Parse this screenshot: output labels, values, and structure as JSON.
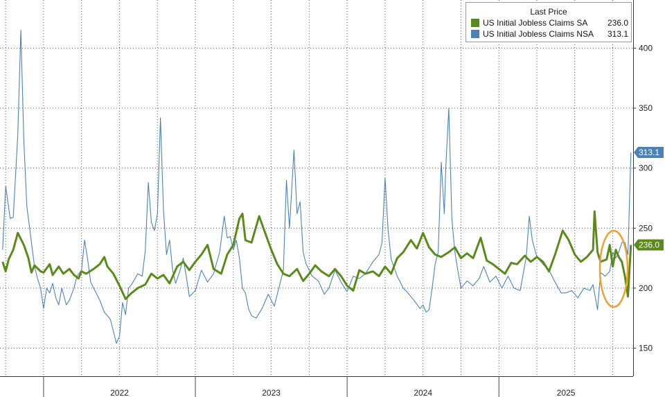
{
  "chart_data": {
    "type": "line",
    "legend": {
      "title": "Last Price",
      "position": "top-right"
    },
    "x": {
      "ticks": [
        "2022",
        "2023",
        "2024",
        "2025"
      ],
      "range": [
        "2021-09",
        "2025-12"
      ]
    },
    "y": {
      "ticks": [
        "150",
        "200",
        "250",
        "300",
        "350",
        "400"
      ],
      "range": [
        122,
        435
      ]
    },
    "grid": true,
    "series": [
      {
        "name": "US Initial Jobless Claims SA",
        "last": "236.0",
        "color": "#5a8a1a",
        "points": [
          [
            2021.73,
            222
          ],
          [
            2021.75,
            214
          ],
          [
            2021.77,
            224
          ],
          [
            2021.8,
            232
          ],
          [
            2021.83,
            246
          ],
          [
            2021.87,
            236
          ],
          [
            2021.9,
            225
          ],
          [
            2021.92,
            213
          ],
          [
            2021.94,
            219
          ],
          [
            2021.98,
            214
          ],
          [
            2022.0,
            213
          ],
          [
            2022.04,
            220
          ],
          [
            2022.06,
            211
          ],
          [
            2022.1,
            218
          ],
          [
            2022.13,
            212
          ],
          [
            2022.17,
            216
          ],
          [
            2022.2,
            211
          ],
          [
            2022.23,
            208
          ],
          [
            2022.25,
            214
          ],
          [
            2022.28,
            212
          ],
          [
            2022.33,
            216
          ],
          [
            2022.37,
            220
          ],
          [
            2022.4,
            226
          ],
          [
            2022.42,
            218
          ],
          [
            2022.46,
            212
          ],
          [
            2022.5,
            202
          ],
          [
            2022.54,
            191
          ],
          [
            2022.58,
            196
          ],
          [
            2022.62,
            200
          ],
          [
            2022.67,
            203
          ],
          [
            2022.71,
            212
          ],
          [
            2022.75,
            208
          ],
          [
            2022.79,
            211
          ],
          [
            2022.83,
            204
          ],
          [
            2022.88,
            218
          ],
          [
            2022.92,
            222
          ],
          [
            2022.96,
            215
          ],
          [
            2023.0,
            222
          ],
          [
            2023.04,
            228
          ],
          [
            2023.08,
            236
          ],
          [
            2023.12,
            216
          ],
          [
            2023.17,
            212
          ],
          [
            2023.21,
            228
          ],
          [
            2023.25,
            236
          ],
          [
            2023.29,
            258
          ],
          [
            2023.31,
            262
          ],
          [
            2023.33,
            240
          ],
          [
            2023.37,
            238
          ],
          [
            2023.42,
            260
          ],
          [
            2023.46,
            246
          ],
          [
            2023.5,
            232
          ],
          [
            2023.54,
            220
          ],
          [
            2023.58,
            212
          ],
          [
            2023.62,
            210
          ],
          [
            2023.67,
            216
          ],
          [
            2023.71,
            206
          ],
          [
            2023.75,
            212
          ],
          [
            2023.79,
            219
          ],
          [
            2023.83,
            214
          ],
          [
            2023.88,
            210
          ],
          [
            2023.92,
            216
          ],
          [
            2023.96,
            210
          ],
          [
            2024.0,
            202
          ],
          [
            2024.04,
            198
          ],
          [
            2024.08,
            215
          ],
          [
            2024.12,
            212
          ],
          [
            2024.17,
            214
          ],
          [
            2024.21,
            210
          ],
          [
            2024.25,
            218
          ],
          [
            2024.29,
            212
          ],
          [
            2024.33,
            225
          ],
          [
            2024.37,
            230
          ],
          [
            2024.42,
            240
          ],
          [
            2024.46,
            233
          ],
          [
            2024.5,
            246
          ],
          [
            2024.54,
            234
          ],
          [
            2024.58,
            228
          ],
          [
            2024.62,
            226
          ],
          [
            2024.67,
            230
          ],
          [
            2024.71,
            234
          ],
          [
            2024.75,
            225
          ],
          [
            2024.79,
            229
          ],
          [
            2024.83,
            225
          ],
          [
            2024.88,
            242
          ],
          [
            2024.92,
            223
          ],
          [
            2024.96,
            220
          ],
          [
            2025.0,
            216
          ],
          [
            2025.04,
            212
          ],
          [
            2025.08,
            221
          ],
          [
            2025.12,
            220
          ],
          [
            2025.17,
            227
          ],
          [
            2025.21,
            222
          ],
          [
            2025.25,
            226
          ],
          [
            2025.29,
            222
          ],
          [
            2025.33,
            214
          ],
          [
            2025.37,
            228
          ],
          [
            2025.42,
            248
          ],
          [
            2025.46,
            240
          ],
          [
            2025.5,
            228
          ],
          [
            2025.54,
            222
          ],
          [
            2025.58,
            226
          ],
          [
            2025.62,
            232
          ],
          [
            2025.63,
            264
          ],
          [
            2025.65,
            230
          ],
          [
            2025.67,
            222
          ],
          [
            2025.71,
            224
          ],
          [
            2025.73,
            236
          ],
          [
            2025.75,
            218
          ],
          [
            2025.77,
            232
          ],
          [
            2025.79,
            226
          ],
          [
            2025.81,
            222
          ],
          [
            2025.83,
            210
          ],
          [
            2025.85,
            193
          ],
          [
            2025.87,
            236
          ]
        ]
      },
      {
        "name": "US Initial Jobless Claims NSA",
        "last": "313.1",
        "color": "#4a82b8",
        "points": [
          [
            2021.73,
            232
          ],
          [
            2021.75,
            285
          ],
          [
            2021.78,
            258
          ],
          [
            2021.8,
            259
          ],
          [
            2021.83,
            328
          ],
          [
            2021.85,
            415
          ],
          [
            2021.87,
            323
          ],
          [
            2021.89,
            268
          ],
          [
            2021.92,
            238
          ],
          [
            2021.94,
            218
          ],
          [
            2021.96,
            208
          ],
          [
            2021.98,
            200
          ],
          [
            2022.0,
            183
          ],
          [
            2022.02,
            200
          ],
          [
            2022.04,
            196
          ],
          [
            2022.06,
            204
          ],
          [
            2022.08,
            192
          ],
          [
            2022.1,
            186
          ],
          [
            2022.12,
            200
          ],
          [
            2022.15,
            186
          ],
          [
            2022.17,
            190
          ],
          [
            2022.2,
            200
          ],
          [
            2022.22,
            210
          ],
          [
            2022.25,
            215
          ],
          [
            2022.27,
            240
          ],
          [
            2022.29,
            224
          ],
          [
            2022.31,
            205
          ],
          [
            2022.33,
            200
          ],
          [
            2022.37,
            190
          ],
          [
            2022.4,
            180
          ],
          [
            2022.44,
            174
          ],
          [
            2022.48,
            154
          ],
          [
            2022.5,
            160
          ],
          [
            2022.52,
            188
          ],
          [
            2022.54,
            178
          ],
          [
            2022.56,
            200
          ],
          [
            2022.58,
            203
          ],
          [
            2022.62,
            212
          ],
          [
            2022.65,
            210
          ],
          [
            2022.67,
            231
          ],
          [
            2022.69,
            288
          ],
          [
            2022.71,
            255
          ],
          [
            2022.73,
            248
          ],
          [
            2022.75,
            262
          ],
          [
            2022.77,
            342
          ],
          [
            2022.79,
            265
          ],
          [
            2022.81,
            228
          ],
          [
            2022.83,
            240
          ],
          [
            2022.85,
            215
          ],
          [
            2022.87,
            204
          ],
          [
            2022.9,
            215
          ],
          [
            2022.92,
            225
          ],
          [
            2022.94,
            210
          ],
          [
            2022.96,
            193
          ],
          [
            2023.0,
            198
          ],
          [
            2023.04,
            215
          ],
          [
            2023.08,
            205
          ],
          [
            2023.12,
            212
          ],
          [
            2023.16,
            230
          ],
          [
            2023.19,
            260
          ],
          [
            2023.21,
            242
          ],
          [
            2023.23,
            243
          ],
          [
            2023.25,
            232
          ],
          [
            2023.27,
            240
          ],
          [
            2023.29,
            225
          ],
          [
            2023.31,
            200
          ],
          [
            2023.33,
            196
          ],
          [
            2023.35,
            183
          ],
          [
            2023.37,
            177
          ],
          [
            2023.4,
            175
          ],
          [
            2023.44,
            183
          ],
          [
            2023.48,
            195
          ],
          [
            2023.52,
            185
          ],
          [
            2023.54,
            195
          ],
          [
            2023.56,
            205
          ],
          [
            2023.58,
            215
          ],
          [
            2023.6,
            290
          ],
          [
            2023.62,
            250
          ],
          [
            2023.65,
            315
          ],
          [
            2023.67,
            262
          ],
          [
            2023.69,
            272
          ],
          [
            2023.71,
            230
          ],
          [
            2023.73,
            220
          ],
          [
            2023.77,
            210
          ],
          [
            2023.81,
            206
          ],
          [
            2023.85,
            195
          ],
          [
            2023.88,
            200
          ],
          [
            2023.92,
            215
          ],
          [
            2023.96,
            205
          ],
          [
            2024.0,
            197
          ],
          [
            2024.04,
            210
          ],
          [
            2024.08,
            208
          ],
          [
            2024.12,
            212
          ],
          [
            2024.17,
            222
          ],
          [
            2024.21,
            228
          ],
          [
            2024.23,
            238
          ],
          [
            2024.25,
            292
          ],
          [
            2024.27,
            248
          ],
          [
            2024.29,
            224
          ],
          [
            2024.33,
            210
          ],
          [
            2024.37,
            200
          ],
          [
            2024.4,
            196
          ],
          [
            2024.44,
            190
          ],
          [
            2024.48,
            183
          ],
          [
            2024.5,
            186
          ],
          [
            2024.52,
            180
          ],
          [
            2024.54,
            182
          ],
          [
            2024.56,
            200
          ],
          [
            2024.58,
            220
          ],
          [
            2024.6,
            230
          ],
          [
            2024.62,
            305
          ],
          [
            2024.64,
            262
          ],
          [
            2024.65,
            300
          ],
          [
            2024.67,
            350
          ],
          [
            2024.69,
            258
          ],
          [
            2024.71,
            230
          ],
          [
            2024.73,
            214
          ],
          [
            2024.75,
            200
          ],
          [
            2024.79,
            206
          ],
          [
            2024.83,
            202
          ],
          [
            2024.87,
            208
          ],
          [
            2024.9,
            218
          ],
          [
            2024.94,
            205
          ],
          [
            2024.98,
            210
          ],
          [
            2025.02,
            200
          ],
          [
            2025.06,
            210
          ],
          [
            2025.1,
            200
          ],
          [
            2025.14,
            198
          ],
          [
            2025.18,
            226
          ],
          [
            2025.2,
            260
          ],
          [
            2025.22,
            240
          ],
          [
            2025.25,
            226
          ],
          [
            2025.29,
            220
          ],
          [
            2025.33,
            215
          ],
          [
            2025.37,
            205
          ],
          [
            2025.41,
            196
          ],
          [
            2025.44,
            196
          ],
          [
            2025.48,
            198
          ],
          [
            2025.52,
            192
          ],
          [
            2025.56,
            200
          ],
          [
            2025.6,
            198
          ],
          [
            2025.62,
            203
          ],
          [
            2025.65,
            182
          ],
          [
            2025.67,
            213
          ],
          [
            2025.7,
            210
          ],
          [
            2025.73,
            214
          ],
          [
            2025.75,
            230
          ],
          [
            2025.77,
            225
          ],
          [
            2025.79,
            230
          ],
          [
            2025.81,
            238
          ],
          [
            2025.83,
            238
          ],
          [
            2025.85,
            228
          ],
          [
            2025.87,
            313
          ]
        ]
      }
    ],
    "annotations": [
      {
        "type": "ellipse",
        "color": "#f0a030"
      }
    ]
  }
}
